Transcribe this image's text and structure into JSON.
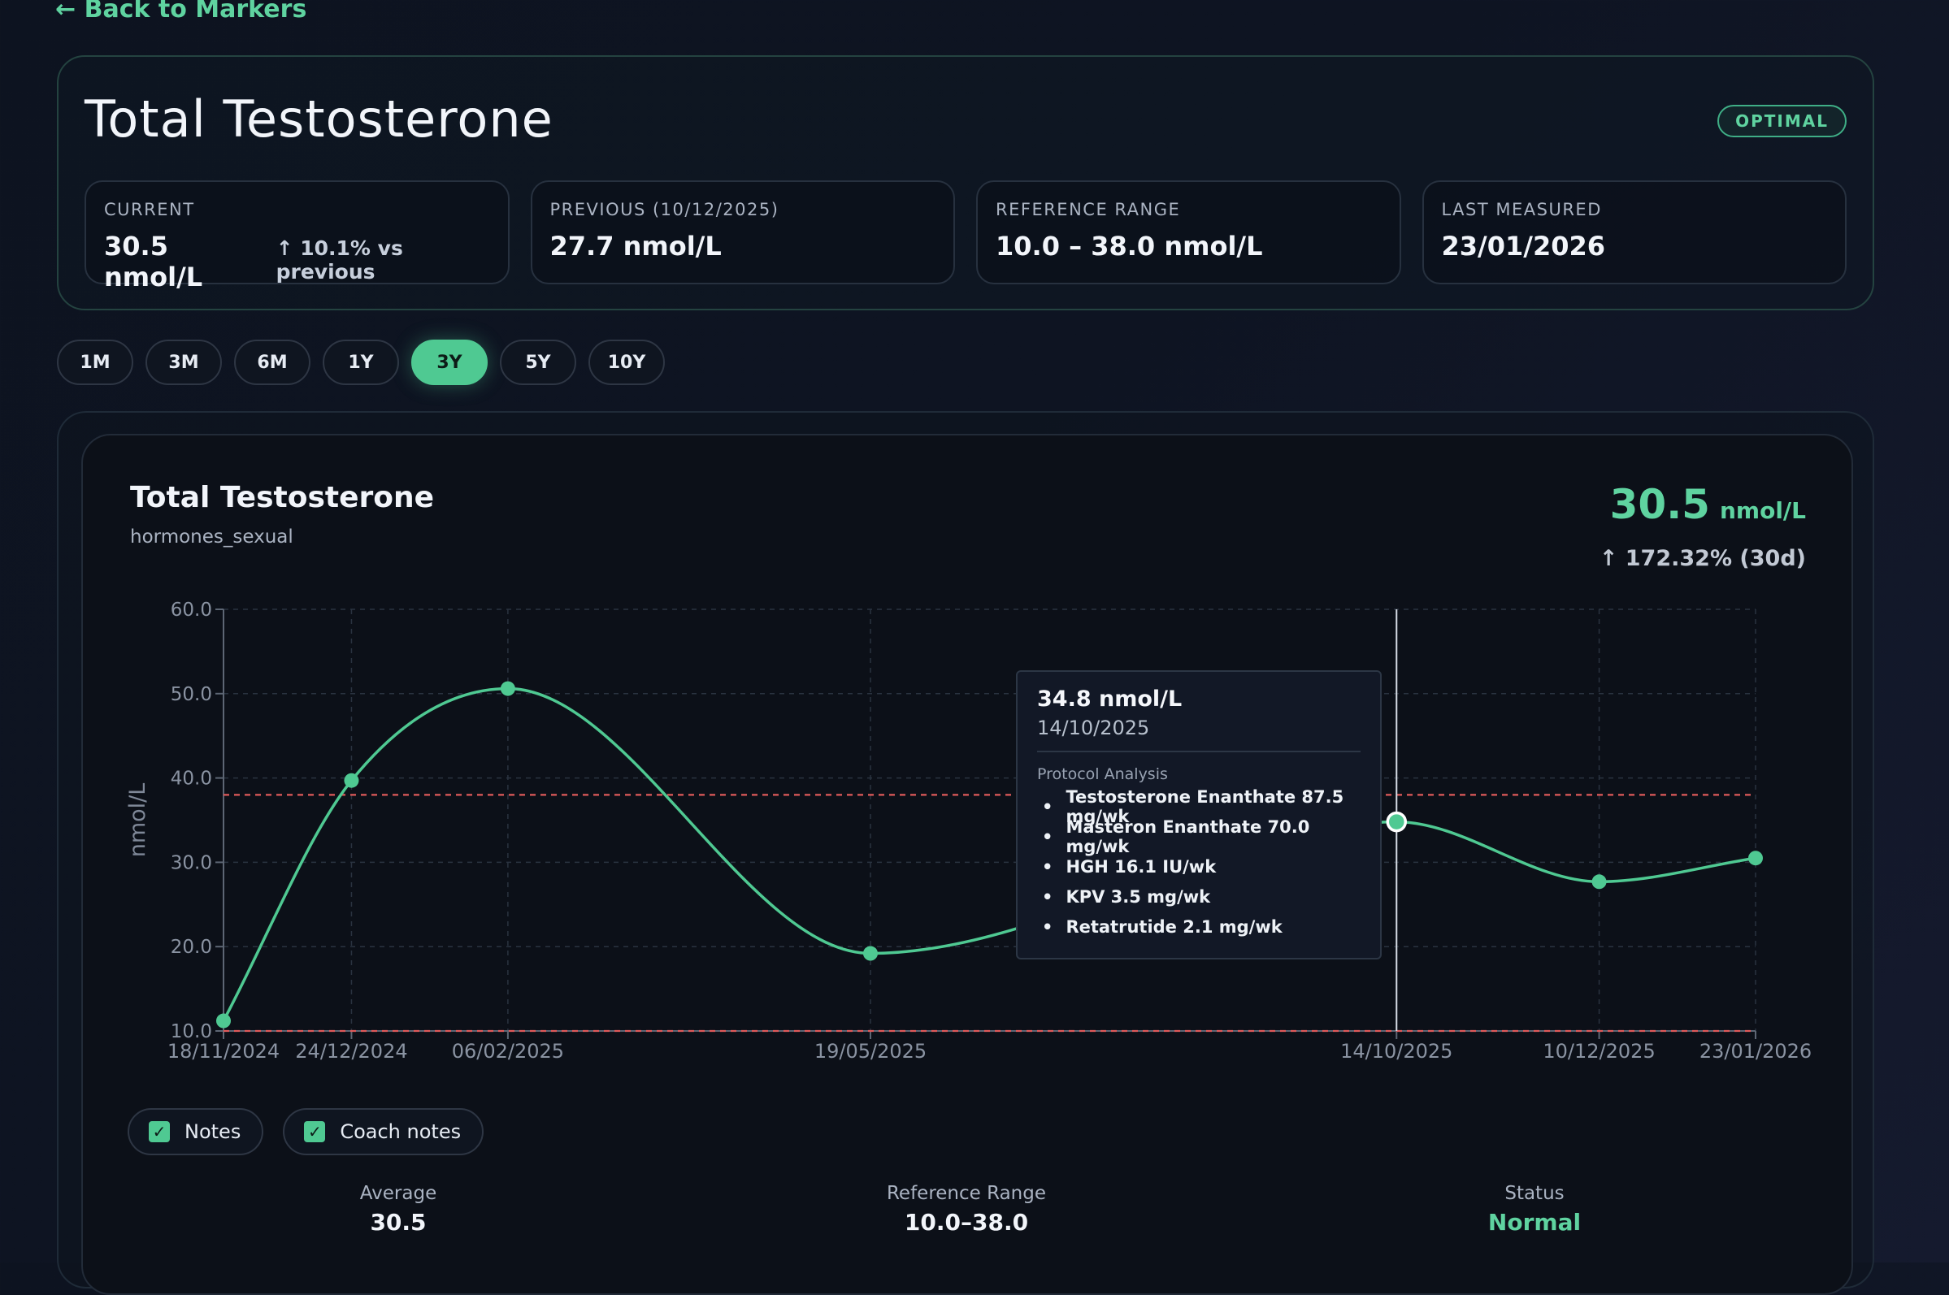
{
  "nav": {
    "back_label": "← Back to Markers"
  },
  "header": {
    "title": "Total Testosterone",
    "status": "OPTIMAL",
    "stats": [
      {
        "label": "CURRENT",
        "value": "30.5 nmol/L",
        "change": "↑ 10.1% vs previous"
      },
      {
        "label": "PREVIOUS (10/12/2025)",
        "value": "27.7 nmol/L"
      },
      {
        "label": "REFERENCE RANGE",
        "value": "10.0 – 38.0 nmol/L"
      },
      {
        "label": "LAST MEASURED",
        "value": "23/01/2026"
      }
    ]
  },
  "ranges": {
    "options": [
      "1M",
      "3M",
      "6M",
      "1Y",
      "3Y",
      "5Y",
      "10Y"
    ],
    "selected": "3Y"
  },
  "chart_card": {
    "title": "Total Testosterone",
    "category": "hormones_sexual",
    "current_value": "30.5",
    "current_unit": "nmol/L",
    "change": "↑ 172.32% (30d)"
  },
  "tooltip": {
    "value": "34.8 nmol/L",
    "date": "14/10/2025",
    "heading": "Protocol Analysis",
    "items": [
      "Testosterone Enanthate 87.5 mg/wk",
      "Masteron Enanthate 70.0 mg/wk",
      "HGH 16.1 IU/wk",
      "KPV 3.5 mg/wk",
      "Retatrutide 2.1 mg/wk"
    ]
  },
  "toggles": [
    {
      "label": "Notes",
      "checked": true
    },
    {
      "label": "Coach notes",
      "checked": true
    }
  ],
  "summary": [
    {
      "label": "Average",
      "value": "30.5"
    },
    {
      "label": "Reference Range",
      "value": "10.0–38.0"
    },
    {
      "label": "Status",
      "value": "Normal"
    }
  ],
  "colors": {
    "accent": "#5fd3a0",
    "line": "#4fc992",
    "reference": "#e05a5a",
    "grid": "#2a3340"
  },
  "chart_data": {
    "type": "line",
    "ylabel": "nmol/L",
    "ylim": [
      10,
      60
    ],
    "yticks": [
      "10.0",
      "20.0",
      "30.0",
      "40.0",
      "50.0",
      "60.0"
    ],
    "x": [
      "18/11/2024",
      "24/12/2024",
      "06/02/2025",
      "19/05/2025",
      "14/10/2025",
      "10/12/2025",
      "23/01/2026"
    ],
    "series": [
      {
        "values": [
          11.2,
          39.7,
          50.6,
          19.2,
          34.8,
          27.7,
          30.5
        ]
      }
    ],
    "reference_lines": [
      10.0,
      38.0
    ],
    "grid": true,
    "highlighted_point": "14/10/2025"
  }
}
